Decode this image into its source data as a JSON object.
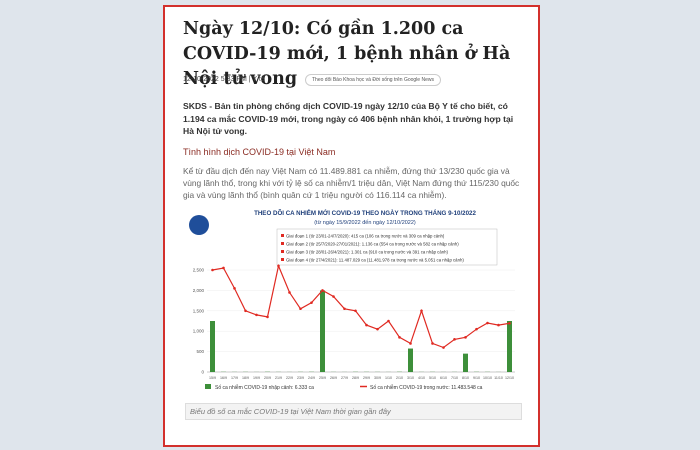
{
  "article": {
    "title": "Ngày 12/10: Có gần 1.200 ca COVID-19 mới, 1 bệnh nhân ở Hà Nội tử vong",
    "meta": "12-10-2022 5:33 PM | Y tế",
    "follow": "Theo dõi Báo Khoa học và Đời sống trên Google News",
    "lead": "SKDS - Bản tin phòng chống dịch COVID-19 ngày 12/10 của Bộ Y tế cho biết, có 1.194 ca mắc COVID-19 mới, trong ngày có 406 bệnh nhân khỏi, 1 trường hợp tại Hà Nội tử vong.",
    "subheading": "Tình hình dịch COVID-19 tại Việt Nam",
    "paragraph": "Kể từ đầu dịch đến nay Việt Nam có 11.489.881 ca nhiễm, đứng thứ 13/230 quốc gia và vùng lãnh thổ, trong khi với tỷ lệ số ca nhiễm/1 triệu dân, Việt Nam đứng thứ 115/230 quốc gia và vùng lãnh thổ (bình quân cứ 1 triệu người có 116.114 ca nhiễm).",
    "caption": "Biểu đồ số ca mắc COVID-19 tại Việt Nam thời gian gần đây"
  },
  "chart": {
    "type": "bar-line",
    "title": "THEO DÕI CA NHIỄM MỚI COVID-19 THEO NGÀY TRONG THÁNG 9-10/2022",
    "subtitle": "(từ ngày 15/9/2022 đến ngày 12/10/2022)",
    "notes": [
      "Giai đoạn 1 (từ 23/01-24/7/2020): 415 ca (106 ca trong nước và 309 ca nhập cảnh)",
      "Giai đoạn 2 (từ 25/7/2020-27/01/2021): 1.136 ca (554 ca trong nước và 582 ca nhập cảnh)",
      "Giai đoạn 3 (từ 28/01-26/4/2021): 1.301 ca (910 ca trong nước và 391 ca nhập cảnh)",
      "Giai đoạn 4 (từ 27/4/2021): 11.487.029 ca (11.481.978 ca trong nước và 5.051 ca nhập cảnh)"
    ],
    "categories": [
      "15/9",
      "16/9",
      "17/9",
      "18/9",
      "19/9",
      "20/9",
      "21/9",
      "22/9",
      "23/9",
      "24/9",
      "25/9",
      "26/9",
      "27/9",
      "28/9",
      "29/9",
      "30/9",
      "1/10",
      "2/10",
      "3/10",
      "4/10",
      "5/10",
      "6/10",
      "7/10",
      "8/10",
      "9/10",
      "10/10",
      "11/10",
      "12/10"
    ],
    "ylim": [
      0,
      2500
    ],
    "yticks": [
      0,
      500,
      {
        "value": 1000,
        "label": "1,000"
      },
      {
        "value": 1500,
        "label": "1,500"
      },
      {
        "value": 2000,
        "label": "2,000"
      },
      {
        "value": 2500,
        "label": "2,500"
      }
    ],
    "series": [
      {
        "name": "Số ca nhiễm COVID-19 nhập cảnh: 6.333 ca",
        "kind": "bar",
        "color": "#3d8f3a",
        "values": [
          1250,
          5,
          3,
          4,
          2,
          6,
          3,
          2,
          4,
          5,
          2000,
          3,
          2,
          5,
          4,
          3,
          2,
          6,
          575,
          3,
          4,
          2,
          3,
          450,
          5,
          4,
          2,
          1250
        ]
      },
      {
        "name": "Số ca nhiễm COVID-19 trong nước: 11.483.548 ca",
        "kind": "line",
        "color": "#e02a22",
        "values": [
          2500,
          2550,
          2050,
          1500,
          1400,
          1350,
          2600,
          1950,
          1550,
          1700,
          2000,
          1850,
          1550,
          1500,
          1150,
          1050,
          1250,
          850,
          700,
          1500,
          700,
          600,
          800,
          850,
          1050,
          1200,
          1150,
          1194
        ]
      }
    ]
  }
}
